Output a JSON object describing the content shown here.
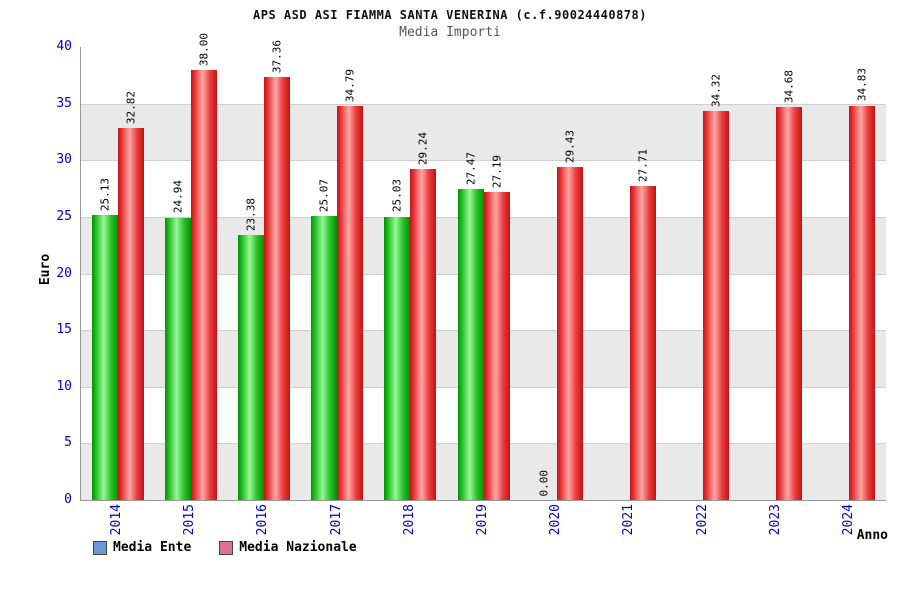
{
  "title": "APS ASD ASI FIAMMA SANTA VENERINA (c.f.90024440878)",
  "subtitle": "Media Importi",
  "chart_data": {
    "type": "bar",
    "categories": [
      "2014",
      "2015",
      "2016",
      "2017",
      "2018",
      "2019",
      "2020",
      "2021",
      "2022",
      "2023",
      "2024"
    ],
    "series": [
      {
        "name": "Media Ente",
        "values": [
          25.13,
          24.94,
          23.38,
          25.07,
          25.03,
          27.47,
          0.0,
          null,
          null,
          null,
          null
        ],
        "bar_color": "#00bb00",
        "legend_color": "#6b9bd2"
      },
      {
        "name": "Media Nazionale",
        "values": [
          32.82,
          38.0,
          37.36,
          34.79,
          29.24,
          27.19,
          29.43,
          27.71,
          34.32,
          34.68,
          34.83
        ],
        "bar_color": "#ee2222",
        "legend_color": "#e0708f"
      }
    ],
    "xlabel": "Anno",
    "ylabel": "Euro",
    "ylim": [
      0,
      40
    ],
    "ytick_step": 5,
    "grid": true,
    "legend_position": "bottom-left",
    "tick_label_color": "#0000cc",
    "value_label_format": "2-decimals",
    "value_label_rotation": 90,
    "x_label_rotation": 90
  }
}
